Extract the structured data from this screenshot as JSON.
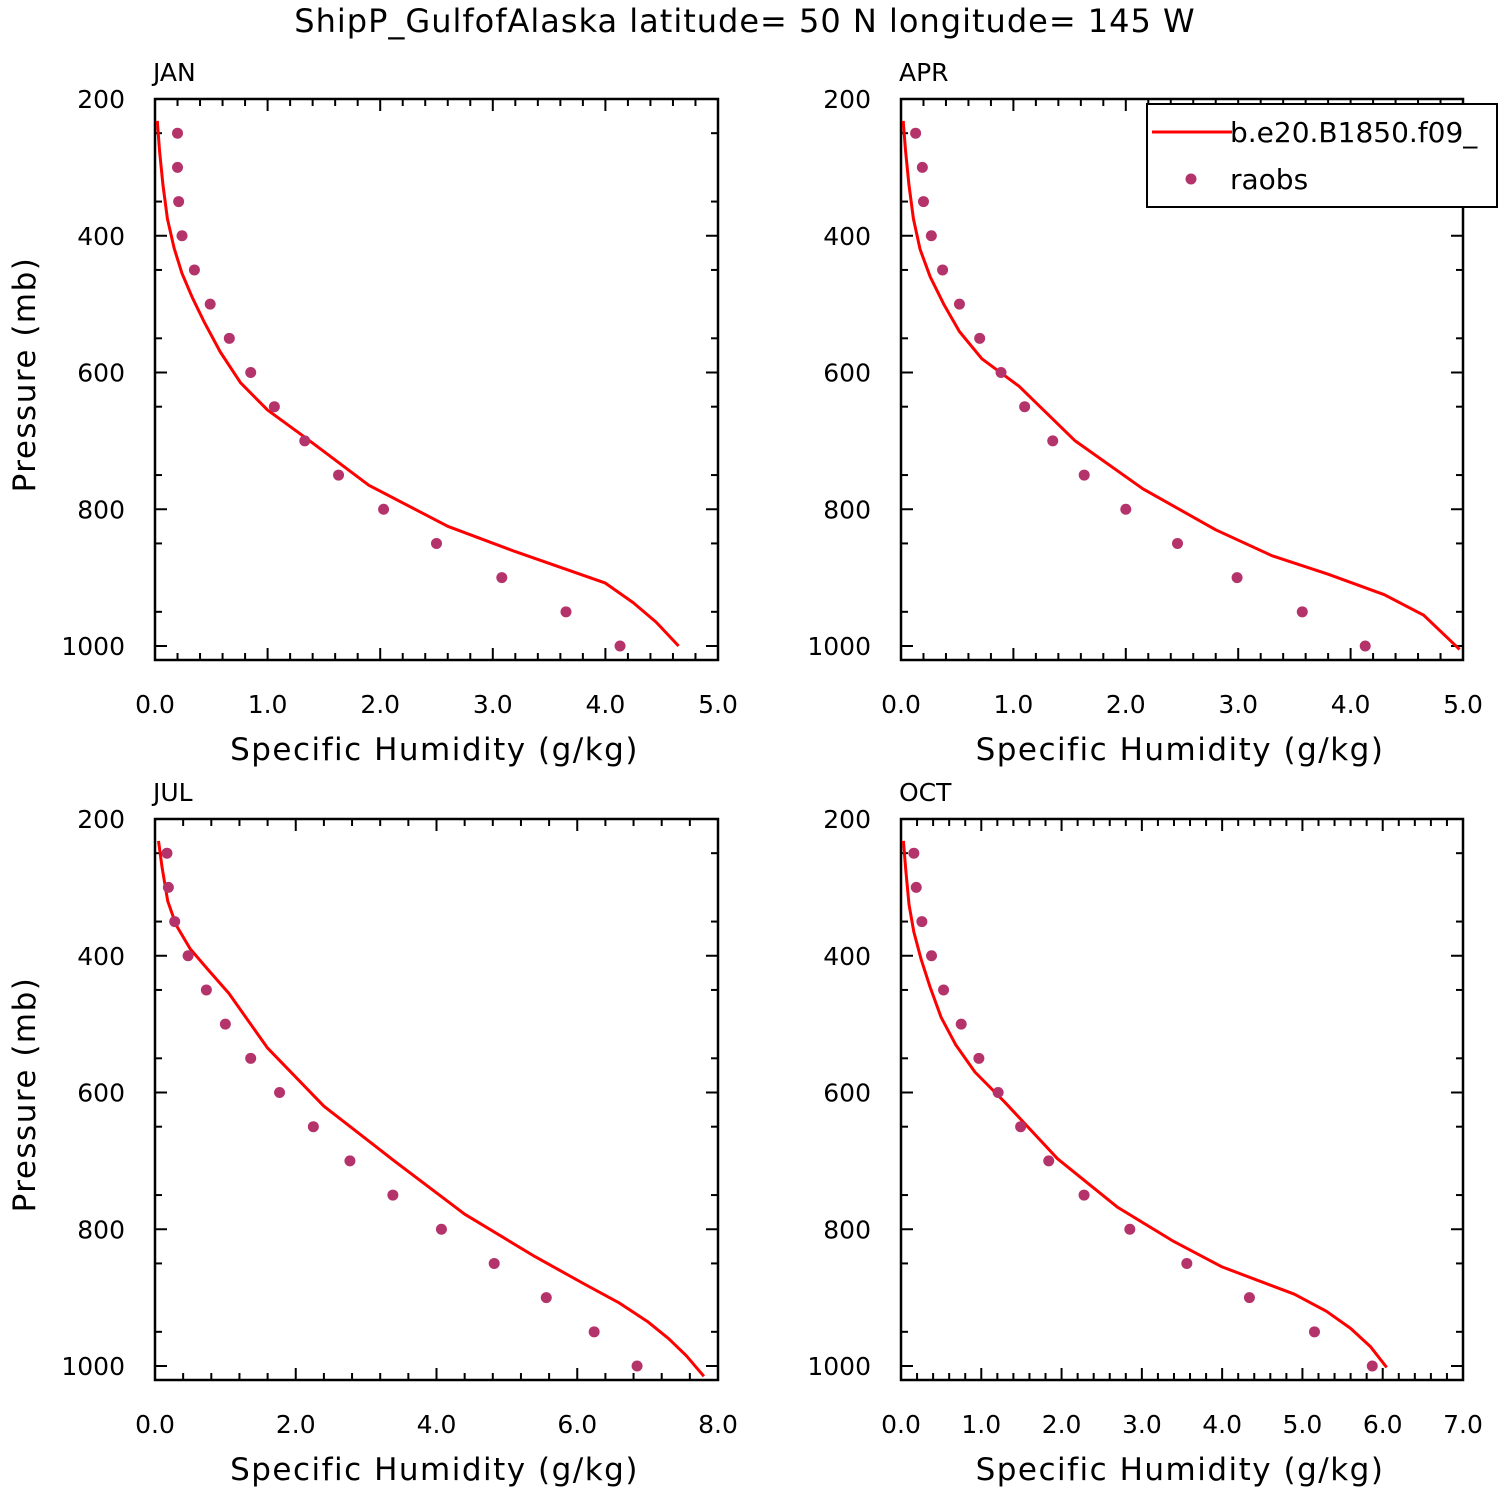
{
  "title": "ShipP_GulfofAlaska  latitude= 50 N longitude= 145 W",
  "legend": {
    "model_label": "b.e20.B1850.f09_",
    "obs_label": "raobs",
    "model_color": "#ff0000",
    "obs_color": "#b5336b"
  },
  "chart_data": [
    {
      "type": "line",
      "panel": "JAN",
      "xlabel": "Specific Humidity (g/kg)",
      "ylabel": "Pressure (mb)",
      "xlim": [
        0,
        5
      ],
      "ylim": [
        200,
        1000
      ],
      "y_inverted": true,
      "xticks": [
        "0.0",
        "1.0",
        "2.0",
        "3.0",
        "4.0",
        "5.0"
      ],
      "yticks": [
        "200",
        "400",
        "600",
        "800",
        "1000"
      ],
      "series": [
        {
          "name": "b.e20.B1850.f09_",
          "style": "line",
          "x": [
            0.02,
            0.04,
            0.07,
            0.11,
            0.17,
            0.24,
            0.33,
            0.44,
            0.58,
            0.76,
            1.0,
            1.35,
            1.9,
            2.6,
            3.2,
            4.0,
            4.25,
            4.45,
            4.65
          ],
          "y": [
            232,
            275,
            325,
            375,
            418,
            455,
            490,
            527,
            570,
            615,
            655,
            697,
            765,
            825,
            862,
            908,
            937,
            965,
            1000
          ]
        },
        {
          "name": "raobs",
          "style": "scatter",
          "x": [
            0.2,
            0.2,
            0.21,
            0.24,
            0.35,
            0.49,
            0.66,
            0.85,
            1.06,
            1.33,
            1.63,
            2.03,
            2.5,
            3.08,
            3.65,
            4.13
          ],
          "y": [
            250,
            300,
            350,
            400,
            450,
            500,
            550,
            600,
            650,
            700,
            750,
            800,
            850,
            900,
            950,
            1000
          ]
        }
      ]
    },
    {
      "type": "line",
      "panel": "APR",
      "xlabel": "Specific Humidity (g/kg)",
      "ylabel": "",
      "xlim": [
        0,
        5
      ],
      "ylim": [
        200,
        1000
      ],
      "y_inverted": true,
      "legend_position": "top-right",
      "xticks": [
        "0.0",
        "1.0",
        "2.0",
        "3.0",
        "4.0",
        "5.0"
      ],
      "yticks": [
        "200",
        "400",
        "600",
        "800",
        "1000"
      ],
      "series": [
        {
          "name": "b.e20.B1850.f09_",
          "style": "line",
          "x": [
            0.02,
            0.04,
            0.07,
            0.11,
            0.17,
            0.26,
            0.38,
            0.52,
            0.72,
            1.05,
            1.55,
            2.15,
            2.8,
            3.3,
            3.8,
            4.3,
            4.65,
            4.97
          ],
          "y": [
            232,
            275,
            325,
            375,
            420,
            460,
            500,
            540,
            580,
            620,
            700,
            770,
            830,
            868,
            895,
            925,
            955,
            1005
          ]
        },
        {
          "name": "raobs",
          "style": "scatter",
          "x": [
            0.13,
            0.19,
            0.2,
            0.27,
            0.37,
            0.52,
            0.7,
            0.89,
            1.1,
            1.35,
            1.63,
            2.0,
            2.46,
            2.99,
            3.57,
            4.13
          ],
          "y": [
            250,
            300,
            350,
            400,
            450,
            500,
            550,
            600,
            650,
            700,
            750,
            800,
            850,
            900,
            950,
            1000
          ]
        }
      ]
    },
    {
      "type": "line",
      "panel": "JUL",
      "xlabel": "Specific Humidity (g/kg)",
      "ylabel": "Pressure (mb)",
      "xlim": [
        0,
        8
      ],
      "ylim": [
        200,
        1000
      ],
      "y_inverted": true,
      "xticks": [
        "0.0",
        "2.0",
        "4.0",
        "6.0",
        "8.0"
      ],
      "yticks": [
        "200",
        "400",
        "600",
        "800",
        "1000"
      ],
      "series": [
        {
          "name": "b.e20.B1850.f09_",
          "style": "line",
          "x": [
            0.05,
            0.1,
            0.18,
            0.3,
            0.5,
            0.75,
            1.05,
            1.6,
            2.4,
            3.4,
            4.4,
            5.4,
            6.1,
            6.6,
            7.0,
            7.3,
            7.55,
            7.8
          ],
          "y": [
            232,
            270,
            320,
            355,
            390,
            420,
            455,
            535,
            620,
            700,
            778,
            840,
            880,
            908,
            935,
            960,
            985,
            1015
          ]
        },
        {
          "name": "raobs",
          "style": "scatter",
          "x": [
            0.17,
            0.19,
            0.28,
            0.47,
            0.73,
            1.0,
            1.36,
            1.77,
            2.25,
            2.77,
            3.38,
            4.07,
            4.82,
            5.56,
            6.24,
            6.85
          ],
          "y": [
            250,
            300,
            350,
            400,
            450,
            500,
            550,
            600,
            650,
            700,
            750,
            800,
            850,
            900,
            950,
            1000
          ]
        }
      ]
    },
    {
      "type": "line",
      "panel": "OCT",
      "xlabel": "Specific Humidity (g/kg)",
      "ylabel": "",
      "xlim": [
        0,
        7
      ],
      "ylim": [
        200,
        1000
      ],
      "y_inverted": true,
      "xticks": [
        "0.0",
        "1.0",
        "2.0",
        "3.0",
        "4.0",
        "5.0",
        "6.0",
        "7.0"
      ],
      "yticks": [
        "200",
        "400",
        "600",
        "800",
        "1000"
      ],
      "series": [
        {
          "name": "b.e20.B1850.f09_",
          "style": "line",
          "x": [
            0.03,
            0.06,
            0.1,
            0.16,
            0.25,
            0.36,
            0.5,
            0.68,
            0.92,
            1.3,
            1.95,
            2.7,
            3.4,
            4.0,
            4.9,
            5.3,
            5.6,
            5.85,
            6.05
          ],
          "y": [
            232,
            275,
            325,
            365,
            405,
            445,
            490,
            530,
            570,
            615,
            697,
            768,
            818,
            855,
            895,
            920,
            945,
            972,
            1002
          ]
        },
        {
          "name": "raobs",
          "style": "scatter",
          "x": [
            0.16,
            0.19,
            0.26,
            0.38,
            0.53,
            0.75,
            0.97,
            1.21,
            1.49,
            1.84,
            2.28,
            2.85,
            3.56,
            4.34,
            5.15,
            5.87
          ],
          "y": [
            250,
            300,
            350,
            400,
            450,
            500,
            550,
            600,
            650,
            700,
            750,
            800,
            850,
            900,
            950,
            1000
          ]
        }
      ]
    }
  ]
}
